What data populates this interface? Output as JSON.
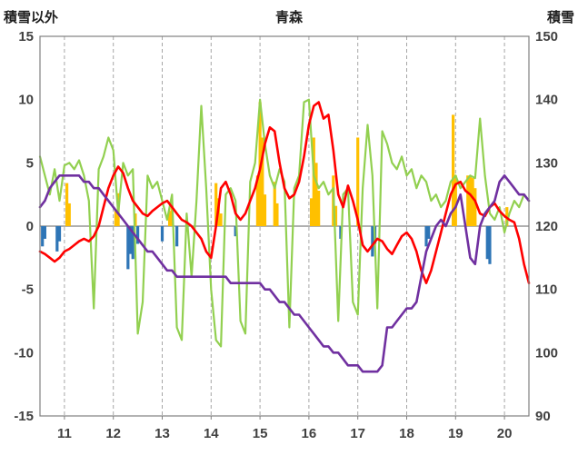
{
  "chart_data": {
    "type": "line",
    "title": "青森",
    "legend": "none",
    "grid": "vertical-dashed",
    "x_axis": {
      "min": 10.5,
      "max": 20.5,
      "ticks": [
        11,
        12,
        13,
        14,
        15,
        16,
        17,
        18,
        19,
        20
      ]
    },
    "left_axis": {
      "title": "積雪以外",
      "min": -15,
      "max": 15,
      "ticks": [
        15,
        10,
        5,
        0,
        -5,
        -10,
        -15
      ]
    },
    "right_axis": {
      "title": "積雪",
      "min": 90,
      "max": 150,
      "ticks": [
        150,
        140,
        130,
        120,
        110,
        100,
        90
      ]
    },
    "colors": {
      "red": "#FF0000",
      "green": "#92D050",
      "orange": "#FFC000",
      "blue": "#2E75B6",
      "purple": "#7030A0",
      "grid": "#A6A6A6",
      "axis": "#808080",
      "text": "#404040",
      "title": "#1F1F1F"
    },
    "series": [
      {
        "name": "orange-bars",
        "type": "bar",
        "axis": "left",
        "color": "#FFC000",
        "points": [
          [
            11.05,
            3.4
          ],
          [
            11.1,
            1.8
          ],
          [
            12.05,
            1.2
          ],
          [
            12.1,
            2.6
          ],
          [
            12.45,
            1.0
          ],
          [
            13.15,
            1.2
          ],
          [
            13.2,
            1.6
          ],
          [
            14.1,
            3.4
          ],
          [
            14.15,
            2.2
          ],
          [
            14.2,
            1.0
          ],
          [
            14.95,
            4.0
          ],
          [
            15.0,
            9.8
          ],
          [
            15.05,
            7.0
          ],
          [
            15.1,
            2.5
          ],
          [
            15.3,
            3.5
          ],
          [
            15.35,
            1.8
          ],
          [
            16.05,
            2.2
          ],
          [
            16.1,
            7.0
          ],
          [
            16.15,
            5.0
          ],
          [
            16.2,
            2.8
          ],
          [
            16.5,
            4.0
          ],
          [
            16.55,
            1.6
          ],
          [
            17.0,
            7.0
          ],
          [
            18.95,
            8.8
          ],
          [
            19.0,
            4.0
          ],
          [
            19.25,
            4.0
          ],
          [
            19.3,
            4.0
          ],
          [
            19.35,
            3.8
          ],
          [
            19.4,
            3.0
          ],
          [
            20.05,
            1.5
          ]
        ]
      },
      {
        "name": "blue-bars",
        "type": "bar",
        "axis": "left",
        "color": "#2E75B6",
        "points": [
          [
            10.55,
            -1.6
          ],
          [
            10.6,
            -1.0
          ],
          [
            10.85,
            -2.0
          ],
          [
            10.9,
            -1.2
          ],
          [
            12.3,
            -3.4
          ],
          [
            12.35,
            -2.2
          ],
          [
            12.4,
            -2.6
          ],
          [
            12.5,
            -1.4
          ],
          [
            13.0,
            -1.2
          ],
          [
            13.3,
            -1.6
          ],
          [
            14.5,
            -0.8
          ],
          [
            16.65,
            -1.0
          ],
          [
            17.3,
            -2.4
          ],
          [
            17.35,
            -1.4
          ],
          [
            18.4,
            -1.6
          ],
          [
            18.45,
            -1.0
          ],
          [
            19.65,
            -2.6
          ],
          [
            19.7,
            -3.0
          ]
        ]
      },
      {
        "name": "green-line",
        "type": "line",
        "axis": "left",
        "color": "#92D050",
        "width": 2.2,
        "x_start": 10.5,
        "x_step": 0.1,
        "values": [
          5.5,
          4.0,
          2.5,
          4.5,
          2.0,
          4.8,
          5.0,
          4.5,
          5.2,
          4.0,
          2.0,
          -6.5,
          4.5,
          5.5,
          7.0,
          6.0,
          1.0,
          5.0,
          4.0,
          4.5,
          -8.5,
          -6.0,
          4.0,
          3.0,
          3.5,
          2.0,
          0.5,
          2.5,
          -8.0,
          -9.0,
          1.0,
          -4.0,
          2.0,
          9.5,
          3.0,
          -5.0,
          -9.0,
          -9.5,
          2.5,
          3.0,
          2.0,
          -7.5,
          -8.5,
          3.5,
          5.0,
          10.0,
          6.5,
          4.0,
          3.0,
          4.5,
          3.5,
          -8.0,
          3.0,
          4.0,
          9.8,
          10.0,
          4.0,
          3.0,
          3.5,
          2.5,
          3.0,
          -7.5,
          2.5,
          3.0,
          -6.0,
          -7.0,
          3.0,
          8.0,
          4.0,
          -6.5,
          7.5,
          6.5,
          5.0,
          4.5,
          5.5,
          4.0,
          4.5,
          3.0,
          4.0,
          3.5,
          2.0,
          2.5,
          1.5,
          2.0,
          3.5,
          4.0,
          3.0,
          3.5,
          4.0,
          3.8,
          8.5,
          4.0,
          1.0,
          0.5,
          1.5,
          -0.5,
          1.0,
          2.0,
          1.5,
          2.5,
          2.0
        ]
      },
      {
        "name": "red-line",
        "type": "line",
        "axis": "left",
        "color": "#FF0000",
        "width": 2.6,
        "x_start": 10.5,
        "x_step": 0.1,
        "values": [
          -2.0,
          -2.2,
          -2.5,
          -2.8,
          -2.5,
          -2.0,
          -1.8,
          -1.5,
          -1.2,
          -1.0,
          -1.2,
          -0.8,
          0.0,
          1.5,
          3.0,
          4.0,
          4.7,
          4.2,
          3.0,
          2.0,
          1.5,
          1.0,
          0.8,
          1.2,
          1.5,
          1.8,
          2.0,
          1.5,
          1.0,
          0.5,
          0.3,
          0.0,
          -0.5,
          -1.0,
          -2.0,
          -2.5,
          0.0,
          3.0,
          3.5,
          2.5,
          1.0,
          0.5,
          1.0,
          2.0,
          3.0,
          4.5,
          6.5,
          7.8,
          7.5,
          5.0,
          3.0,
          2.2,
          2.5,
          3.5,
          5.5,
          8.0,
          9.5,
          9.8,
          8.5,
          8.8,
          6.0,
          2.5,
          1.5,
          3.2,
          2.0,
          0.5,
          -1.5,
          -2.0,
          -1.5,
          -1.0,
          -1.2,
          -1.8,
          -2.2,
          -1.5,
          -0.8,
          -0.5,
          -1.0,
          -2.0,
          -3.5,
          -4.5,
          -3.5,
          -2.0,
          -0.5,
          1.0,
          2.5,
          3.3,
          3.5,
          2.8,
          2.5,
          2.0,
          1.0,
          0.8,
          1.5,
          1.8,
          1.2,
          0.8,
          0.5,
          0.3,
          -1.0,
          -3.0,
          -4.5
        ]
      },
      {
        "name": "purple-line",
        "type": "line",
        "axis": "right",
        "color": "#7030A0",
        "width": 2.6,
        "x_start": 10.5,
        "x_step": 0.1,
        "values": [
          123,
          124,
          126,
          127,
          128,
          128,
          128,
          128,
          128,
          127,
          127,
          126,
          126,
          125,
          124,
          123,
          122,
          121,
          120,
          119,
          118,
          117,
          116,
          116,
          115,
          114,
          113,
          113,
          112,
          112,
          112,
          112,
          112,
          112,
          112,
          112,
          112,
          112,
          112,
          111,
          111,
          111,
          111,
          111,
          111,
          111,
          110,
          110,
          109,
          108,
          108,
          107,
          106,
          106,
          105,
          104,
          103,
          102,
          101,
          101,
          100,
          100,
          99,
          98,
          98,
          98,
          97,
          97,
          97,
          97,
          98,
          104,
          104,
          105,
          106,
          107,
          107,
          108,
          112,
          116,
          118,
          120,
          121,
          120,
          122,
          123,
          125,
          120,
          115,
          114,
          120,
          122,
          123,
          124,
          127,
          128,
          127,
          126,
          125,
          125,
          124
        ]
      }
    ]
  }
}
